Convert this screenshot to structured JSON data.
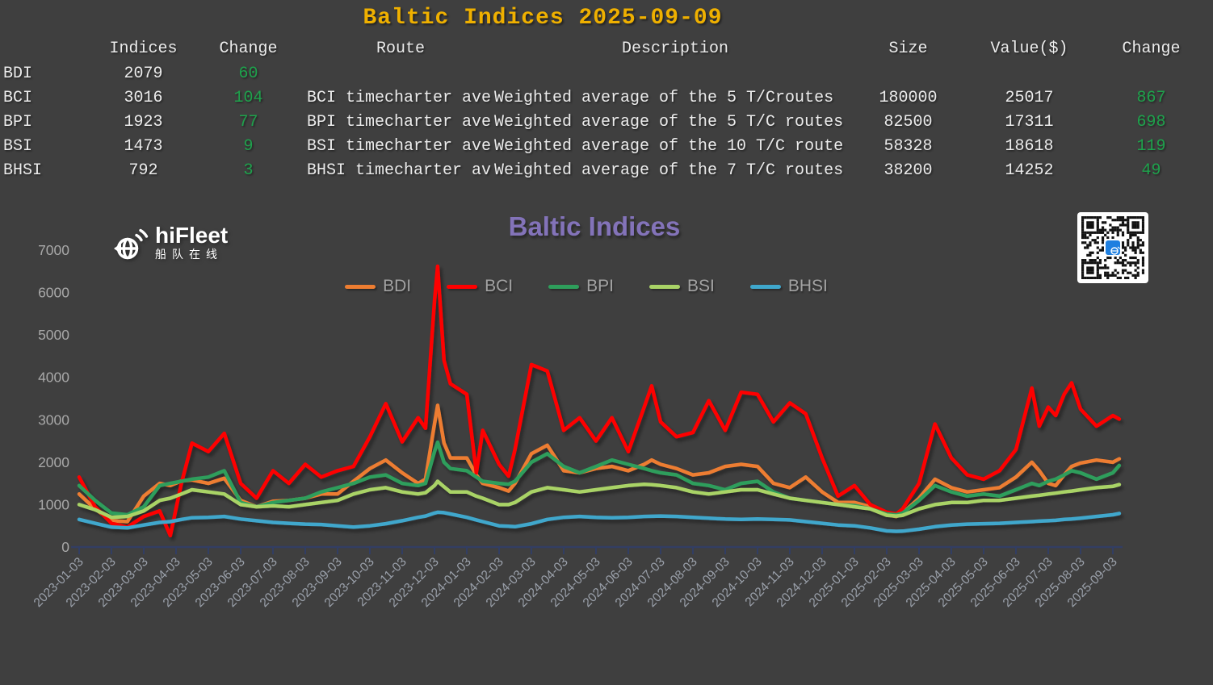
{
  "table": {
    "title": "Baltic Indices 2025-09-09",
    "title_color": "#efb000",
    "text_color": "#ececec",
    "change_color": "#1ea24c",
    "headers": [
      "Indices",
      "Change",
      "Route",
      "Description",
      "Size",
      "Value($)",
      "Change"
    ],
    "rows": [
      {
        "label": "BDI",
        "index": "2079",
        "change": "60",
        "route": "",
        "description": "",
        "size": "",
        "value": "",
        "value_change": ""
      },
      {
        "label": "BCI",
        "index": "3016",
        "change": "104",
        "route": "BCI timecharter ave",
        "description": "Weighted average of the 5 T/Croutes",
        "size": "180000",
        "value": "25017",
        "value_change": "867"
      },
      {
        "label": "BPI",
        "index": "1923",
        "change": "77",
        "route": "BPI timecharter ave",
        "description": "Weighted average of the 5 T/C routes",
        "size": "82500",
        "value": "17311",
        "value_change": "698"
      },
      {
        "label": "BSI",
        "index": "1473",
        "change": "9",
        "route": "BSI timecharter ave",
        "description": "Weighted average of the 10 T/C route",
        "size": "58328",
        "value": "18618",
        "value_change": "119"
      },
      {
        "label": "BHSI",
        "index": "792",
        "change": "3",
        "route": "BHSI timecharter av",
        "description": "Weighted average of the 7 T/C routes",
        "size": "38200",
        "value": "14252",
        "value_change": "49"
      }
    ]
  },
  "chart": {
    "brand": "hiFleet",
    "brand_cn": "船队在线",
    "title_color": "#8373b9",
    "axis_color": "#323e63",
    "xlabel_color": "#9ba1ab",
    "ylabel_color": "#a8a8a8"
  },
  "chart_data": {
    "type": "line",
    "title": "Baltic Indices",
    "ylim": [
      0,
      7000
    ],
    "yticks": [
      0,
      1000,
      2000,
      3000,
      4000,
      5000,
      6000,
      7000
    ],
    "legend_position": "top",
    "grid": false,
    "x_tick_labels": [
      "2023-01-03",
      "2023-02-03",
      "2023-03-03",
      "2023-04-03",
      "2023-05-03",
      "2023-06-03",
      "2023-07-03",
      "2023-08-03",
      "2023-09-03",
      "2023-10-03",
      "2023-11-03",
      "2023-12-03",
      "2024-01-03",
      "2024-02-03",
      "2024-03-03",
      "2024-04-03",
      "2024-05-03",
      "2024-06-03",
      "2024-07-03",
      "2024-08-03",
      "2024-09-03",
      "2024-10-03",
      "2024-11-03",
      "2024-12-03",
      "2025-01-03",
      "2025-02-03",
      "2025-03-03",
      "2025-04-03",
      "2025-05-03",
      "2025-06-03",
      "2025-07-03",
      "2025-08-03",
      "2025-09-03"
    ],
    "x": [
      "2023-01-03",
      "2023-01-18",
      "2023-02-03",
      "2023-02-18",
      "2023-03-03",
      "2023-03-18",
      "2023-03-28",
      "2023-04-08",
      "2023-04-18",
      "2023-05-03",
      "2023-05-18",
      "2023-06-03",
      "2023-06-18",
      "2023-07-03",
      "2023-07-18",
      "2023-08-03",
      "2023-08-18",
      "2023-09-03",
      "2023-09-18",
      "2023-10-03",
      "2023-10-18",
      "2023-11-03",
      "2023-11-18",
      "2023-11-25",
      "2023-12-03",
      "2023-12-06",
      "2023-12-12",
      "2023-12-18",
      "2024-01-03",
      "2024-01-12",
      "2024-01-18",
      "2024-02-03",
      "2024-02-12",
      "2024-02-18",
      "2024-03-03",
      "2024-03-18",
      "2024-04-03",
      "2024-04-18",
      "2024-05-03",
      "2024-05-18",
      "2024-06-03",
      "2024-06-18",
      "2024-06-25",
      "2024-07-03",
      "2024-07-18",
      "2024-08-03",
      "2024-08-18",
      "2024-09-03",
      "2024-09-18",
      "2024-10-03",
      "2024-10-18",
      "2024-11-03",
      "2024-11-18",
      "2024-12-03",
      "2024-12-18",
      "2025-01-03",
      "2025-01-18",
      "2025-02-03",
      "2025-02-12",
      "2025-02-18",
      "2025-03-03",
      "2025-03-18",
      "2025-04-03",
      "2025-04-18",
      "2025-05-03",
      "2025-05-18",
      "2025-06-03",
      "2025-06-18",
      "2025-06-25",
      "2025-07-03",
      "2025-07-10",
      "2025-07-18",
      "2025-07-25",
      "2025-08-03",
      "2025-08-18",
      "2025-09-03",
      "2025-09-09"
    ],
    "series": [
      {
        "name": "BDI",
        "color": "#ED7D31",
        "values": [
          1250,
          900,
          620,
          600,
          1200,
          1500,
          1450,
          1560,
          1580,
          1500,
          1620,
          1100,
          950,
          1080,
          1100,
          1150,
          1250,
          1250,
          1550,
          1850,
          2050,
          1750,
          1500,
          1600,
          2900,
          3340,
          2450,
          2100,
          2100,
          1700,
          1500,
          1400,
          1320,
          1500,
          2200,
          2400,
          1800,
          1750,
          1850,
          1900,
          1800,
          1950,
          2050,
          1950,
          1850,
          1700,
          1750,
          1900,
          1950,
          1900,
          1500,
          1400,
          1650,
          1300,
          1050,
          1050,
          950,
          760,
          720,
          800,
          1150,
          1600,
          1400,
          1300,
          1350,
          1400,
          1650,
          2000,
          1800,
          1500,
          1450,
          1700,
          1900,
          1980,
          2050,
          2000,
          2079
        ]
      },
      {
        "name": "BCI",
        "color": "#FE0000",
        "values": [
          1650,
          950,
          560,
          470,
          720,
          850,
          270,
          1500,
          2450,
          2250,
          2680,
          1500,
          1150,
          1800,
          1500,
          1950,
          1650,
          1800,
          1900,
          2600,
          3380,
          2480,
          3050,
          2800,
          5800,
          6620,
          4400,
          3850,
          3600,
          1750,
          2750,
          1950,
          1670,
          2300,
          4300,
          4150,
          2750,
          3050,
          2500,
          3050,
          2250,
          3300,
          3800,
          2950,
          2600,
          2700,
          3450,
          2750,
          3650,
          3600,
          2950,
          3400,
          3140,
          2100,
          1200,
          1450,
          1000,
          820,
          780,
          900,
          1500,
          2900,
          2100,
          1700,
          1600,
          1800,
          2300,
          3750,
          2850,
          3300,
          3100,
          3600,
          3870,
          3250,
          2850,
          3100,
          3016
        ]
      },
      {
        "name": "BPI",
        "color": "#2E9E5B",
        "values": [
          1450,
          1100,
          800,
          760,
          950,
          1450,
          1500,
          1550,
          1600,
          1650,
          1800,
          1050,
          950,
          1050,
          1100,
          1150,
          1300,
          1400,
          1500,
          1650,
          1700,
          1500,
          1450,
          1500,
          2250,
          2470,
          2000,
          1850,
          1800,
          1650,
          1550,
          1500,
          1480,
          1550,
          2000,
          2200,
          1900,
          1750,
          1900,
          2050,
          1950,
          1850,
          1800,
          1750,
          1700,
          1500,
          1450,
          1350,
          1500,
          1550,
          1300,
          1150,
          1100,
          1050,
          1000,
          980,
          900,
          780,
          760,
          800,
          1100,
          1450,
          1300,
          1200,
          1250,
          1200,
          1350,
          1500,
          1450,
          1550,
          1600,
          1700,
          1800,
          1750,
          1600,
          1750,
          1923
        ]
      },
      {
        "name": "BSI",
        "color": "#A9D366",
        "values": [
          1000,
          880,
          700,
          720,
          850,
          1100,
          1150,
          1250,
          1350,
          1300,
          1250,
          1000,
          950,
          970,
          950,
          1000,
          1050,
          1100,
          1250,
          1350,
          1400,
          1300,
          1250,
          1280,
          1450,
          1550,
          1420,
          1300,
          1300,
          1200,
          1150,
          1000,
          1000,
          1050,
          1300,
          1400,
          1350,
          1300,
          1350,
          1400,
          1450,
          1480,
          1470,
          1450,
          1400,
          1300,
          1250,
          1300,
          1350,
          1350,
          1250,
          1150,
          1100,
          1050,
          1000,
          950,
          900,
          750,
          730,
          750,
          900,
          1000,
          1050,
          1050,
          1100,
          1100,
          1150,
          1200,
          1220,
          1250,
          1270,
          1300,
          1320,
          1350,
          1400,
          1430,
          1473
        ]
      },
      {
        "name": "BHSI",
        "color": "#3FA7CC",
        "values": [
          650,
          560,
          470,
          450,
          520,
          580,
          600,
          650,
          690,
          700,
          720,
          660,
          620,
          580,
          560,
          540,
          530,
          500,
          470,
          500,
          550,
          620,
          700,
          730,
          800,
          820,
          810,
          780,
          700,
          640,
          600,
          500,
          490,
          480,
          550,
          650,
          700,
          720,
          700,
          690,
          700,
          720,
          725,
          730,
          720,
          700,
          680,
          660,
          650,
          660,
          650,
          640,
          600,
          560,
          520,
          500,
          450,
          380,
          370,
          375,
          420,
          480,
          520,
          540,
          550,
          560,
          580,
          600,
          610,
          620,
          630,
          650,
          660,
          680,
          720,
          760,
          792
        ]
      }
    ]
  }
}
